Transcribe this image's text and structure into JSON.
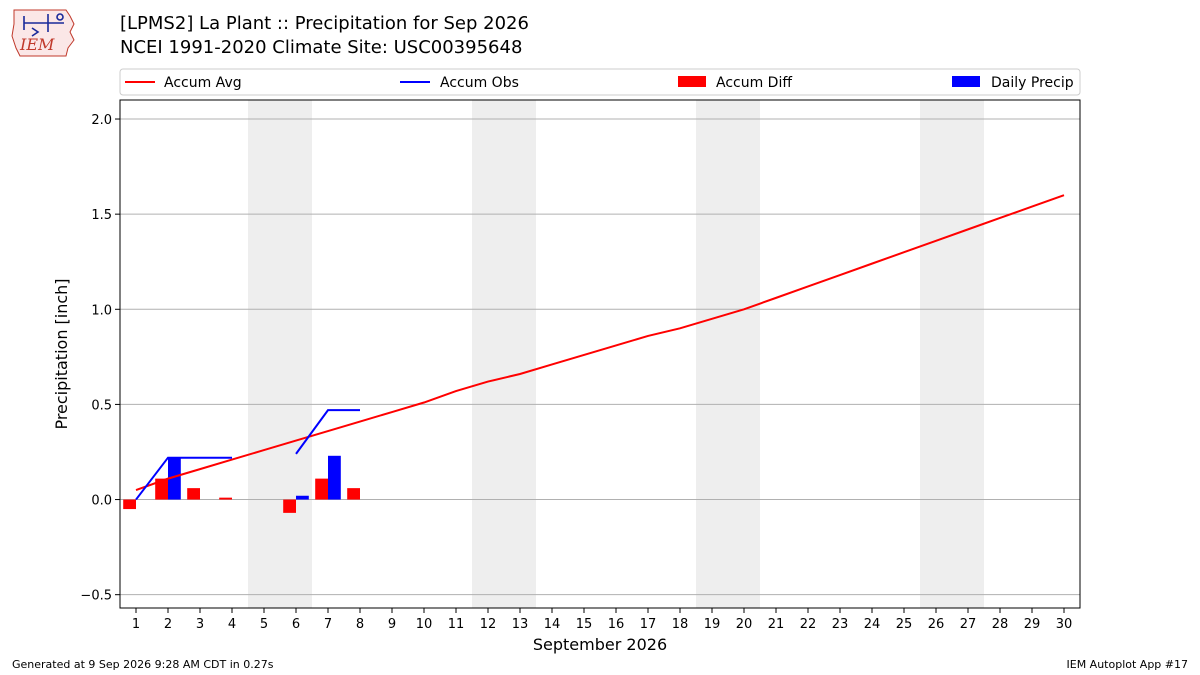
{
  "header": {
    "title_line1": "[LPMS2] La Plant :: Precipitation for Sep 2026",
    "title_line2": "NCEI 1991-2020 Climate Site: USC00395648",
    "logo_text": "IEM"
  },
  "footer": {
    "left": "Generated at 9 Sep 2026 9:28 AM CDT in 0.27s",
    "right": "IEM Autoplot App #17"
  },
  "colors": {
    "avg": "#ff0000",
    "obs": "#0000ff",
    "diff": "#ff0000",
    "daily": "#0000ff",
    "weekend_band": "#eeeeee",
    "grid": "#b0b0b0"
  },
  "chart_data": {
    "type": "bar",
    "xlabel": "September 2026",
    "ylabel": "Precipitation [inch]",
    "xlim": [
      0.5,
      30.5
    ],
    "ylim": [
      -0.57,
      2.1
    ],
    "yticks": [
      -0.5,
      0.0,
      0.5,
      1.0,
      1.5,
      2.0
    ],
    "ytick_labels": [
      "−0.5",
      "0.0",
      "0.5",
      "1.0",
      "1.5",
      "2.0"
    ],
    "xticks": [
      1,
      2,
      3,
      4,
      5,
      6,
      7,
      8,
      9,
      10,
      11,
      12,
      13,
      14,
      15,
      16,
      17,
      18,
      19,
      20,
      21,
      22,
      23,
      24,
      25,
      26,
      27,
      28,
      29,
      30
    ],
    "grid": "horizontal",
    "legend_placement": "top, above plot",
    "shaded_day_ranges": [
      [
        4.5,
        6.5
      ],
      [
        11.5,
        13.5
      ],
      [
        18.5,
        20.5
      ],
      [
        25.5,
        27.5
      ]
    ],
    "legend": [
      {
        "label": "Accum Avg",
        "kind": "line",
        "color": "#ff0000"
      },
      {
        "label": "Accum Obs",
        "kind": "line",
        "color": "#0000ff"
      },
      {
        "label": "Accum Diff",
        "kind": "bar",
        "color": "#ff0000"
      },
      {
        "label": "Daily Precip",
        "kind": "bar",
        "color": "#0000ff"
      }
    ],
    "series": [
      {
        "name": "Accum Avg",
        "kind": "line",
        "x": [
          1,
          2,
          3,
          4,
          5,
          6,
          7,
          8,
          9,
          10,
          11,
          12,
          13,
          14,
          15,
          16,
          17,
          18,
          19,
          20,
          21,
          22,
          23,
          24,
          25,
          26,
          27,
          28,
          29,
          30
        ],
        "values": [
          0.05,
          0.11,
          0.16,
          0.21,
          0.26,
          0.31,
          0.36,
          0.41,
          0.46,
          0.51,
          0.57,
          0.62,
          0.66,
          0.71,
          0.76,
          0.81,
          0.86,
          0.9,
          0.95,
          1.0,
          1.06,
          1.12,
          1.18,
          1.24,
          1.3,
          1.36,
          1.42,
          1.48,
          1.54,
          1.6
        ]
      },
      {
        "name": "Accum Obs",
        "kind": "line",
        "segments": [
          {
            "x": [
              1,
              2,
              3,
              4
            ],
            "values": [
              0.0,
              0.22,
              0.22,
              0.22
            ]
          },
          {
            "x": [
              6,
              7,
              8
            ],
            "values": [
              0.24,
              0.47,
              0.47
            ]
          }
        ]
      },
      {
        "name": "Accum Diff",
        "kind": "bar",
        "x": [
          1,
          2,
          3,
          4,
          6,
          7,
          8
        ],
        "values": [
          -0.05,
          0.11,
          0.06,
          0.01,
          -0.07,
          0.11,
          0.06
        ]
      },
      {
        "name": "Daily Precip",
        "kind": "bar",
        "x": [
          2,
          6,
          7
        ],
        "values": [
          0.22,
          0.02,
          0.23
        ]
      }
    ]
  }
}
